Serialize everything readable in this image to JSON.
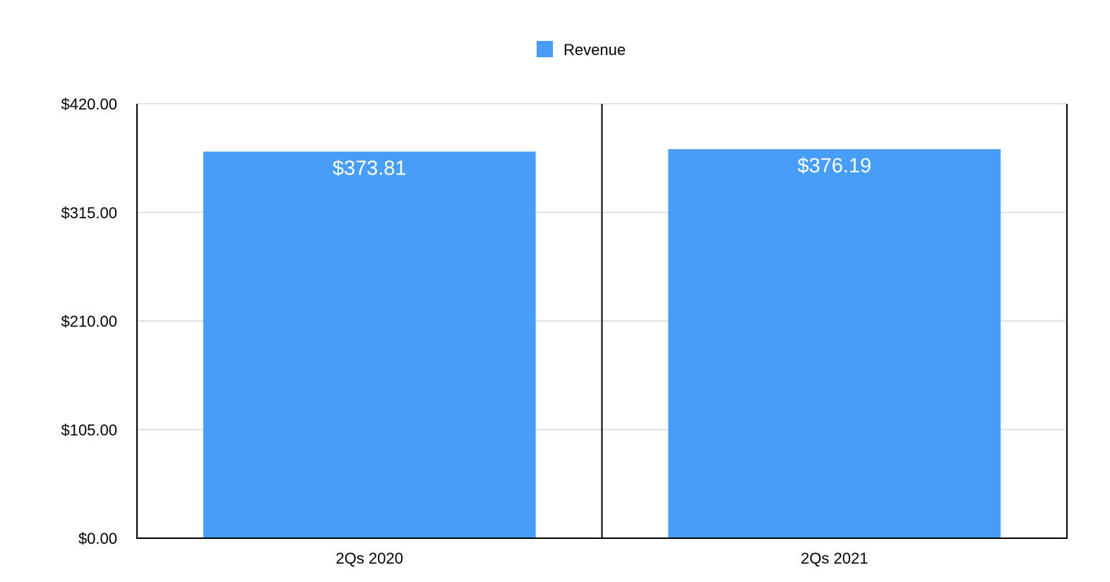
{
  "chart_data": {
    "type": "bar",
    "title": "",
    "xlabel": "",
    "ylabel": "",
    "categories": [
      "2Qs 2020",
      "2Qs 2021"
    ],
    "series": [
      {
        "name": "Revenue",
        "values": [
          373.81,
          376.19
        ],
        "data_labels": [
          "$373.81",
          "$376.19"
        ],
        "color": "#479ef8"
      }
    ],
    "ylim": [
      0,
      420
    ],
    "y_ticks": [
      0,
      105,
      210,
      315,
      420
    ],
    "y_tick_labels": [
      "$0.00",
      "$105.00",
      "$210.00",
      "$315.00",
      "$420.00"
    ],
    "legend": {
      "position": "top-center"
    },
    "grid": true,
    "colors": {
      "bar": "#479ef8",
      "gridline": "#c8c8c8",
      "axis": "#000000",
      "data_label": "#ffffff"
    }
  }
}
